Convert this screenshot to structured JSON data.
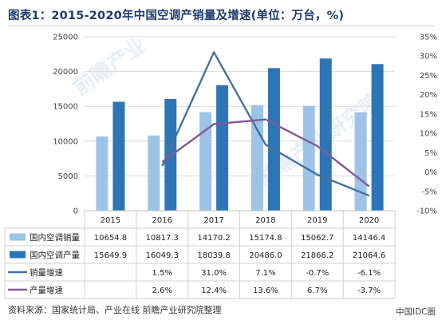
{
  "title": "图表1：2015-2020年中国空调产销量及增速(单位：万台，%)",
  "source": "资料来源：国家统计局、产业在线 前瞻产业研究院整理",
  "footer_tag": "中国IDC圈",
  "colors": {
    "sales": "#9dc3e6",
    "production": "#2e75b6",
    "sales_growth": "#44729e",
    "production_growth": "#7e5c95",
    "grid": "#d9d9d9",
    "title": "#1f3c6e"
  },
  "chart_data": {
    "type": "bar",
    "categories": [
      "2015",
      "2016",
      "2017",
      "2018",
      "2019",
      "2020"
    ],
    "series": [
      {
        "name": "国内空调销量",
        "type": "bar",
        "axis": "left",
        "values": [
          10654.8,
          10817.3,
          14170.2,
          15174.8,
          15062.7,
          14146.4
        ],
        "labels": [
          "10654.8",
          "10817.3",
          "14170.2",
          "15174.8",
          "15062.7",
          "14146.4"
        ]
      },
      {
        "name": "国内空调产量",
        "type": "bar",
        "axis": "left",
        "values": [
          15649.9,
          16049.3,
          18039.8,
          20486.0,
          21866.2,
          21064.6
        ],
        "labels": [
          "15649.9",
          "16049.3",
          "18039.8",
          "20486.0",
          "21866.2",
          "21064.6"
        ]
      },
      {
        "name": "销量增速",
        "type": "line",
        "axis": "right",
        "values": [
          null,
          1.5,
          31.0,
          7.1,
          -0.7,
          -6.1
        ],
        "labels": [
          "",
          "1.5%",
          "31.0%",
          "7.1%",
          "-0.7%",
          "-6.1%"
        ]
      },
      {
        "name": "产量增速",
        "type": "line",
        "axis": "right",
        "values": [
          null,
          2.6,
          12.4,
          13.6,
          6.7,
          -3.7
        ],
        "labels": [
          "",
          "2.6%",
          "12.4%",
          "13.6%",
          "6.7%",
          "-3.7%"
        ]
      }
    ],
    "y_left": {
      "ylim": [
        0,
        25000
      ],
      "ticks": [
        "0",
        "5000",
        "10000",
        "15000",
        "20000",
        "25000"
      ]
    },
    "y_right": {
      "ylim": [
        -10,
        35
      ],
      "ticks": [
        "-10%",
        "-5%",
        "0%",
        "5%",
        "10%",
        "15%",
        "20%",
        "25%",
        "30%",
        "35%"
      ]
    },
    "grid": true,
    "legend": "data-table"
  }
}
